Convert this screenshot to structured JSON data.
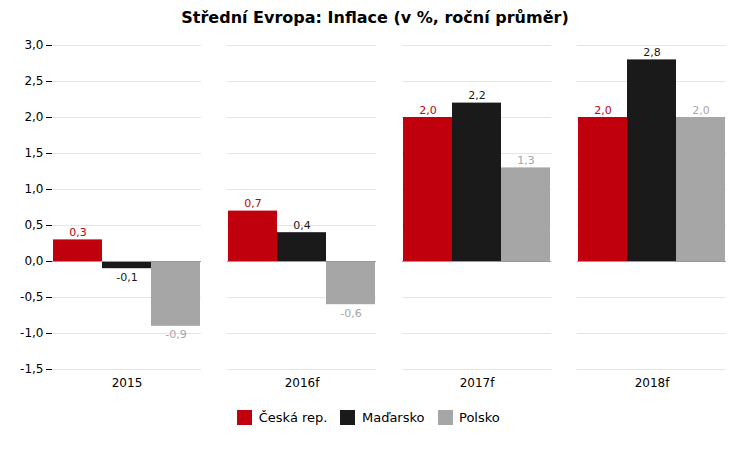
{
  "chart_data": {
    "type": "bar",
    "title": "Střední Evropa: Inflace (v %, roční průměr)",
    "categories": [
      "2015",
      "2016f",
      "2017f",
      "2018f"
    ],
    "series": [
      {
        "name": "Česká rep.",
        "color": "#c0000c",
        "values": [
          0.3,
          0.7,
          2.0,
          2.0
        ],
        "value_labels": [
          "0,3",
          "0,7",
          "2,0",
          "2,0"
        ]
      },
      {
        "name": "Maďarsko",
        "color": "#1a1a1a",
        "values": [
          -0.1,
          0.4,
          2.2,
          2.8
        ],
        "value_labels": [
          "-0,1",
          "0,4",
          "2,2",
          "2,8"
        ]
      },
      {
        "name": "Polsko",
        "color": "#a6a6a6",
        "values": [
          -0.9,
          -0.6,
          1.3,
          2.0
        ],
        "value_labels": [
          "-0,9",
          "-0,6",
          "1,3",
          "2,0"
        ]
      }
    ],
    "ylim": [
      -1.5,
      3.0
    ],
    "yticks": [
      {
        "value": -1.5,
        "label": "-1,5"
      },
      {
        "value": -1.0,
        "label": "-1,0"
      },
      {
        "value": -0.5,
        "label": "-0,5"
      },
      {
        "value": 0.0,
        "label": "0,0"
      },
      {
        "value": 0.5,
        "label": "0,5"
      },
      {
        "value": 1.0,
        "label": "1,0"
      },
      {
        "value": 1.5,
        "label": "1,5"
      },
      {
        "value": 2.0,
        "label": "2,0"
      },
      {
        "value": 2.5,
        "label": "2,5"
      },
      {
        "value": 3.0,
        "label": "3,0"
      }
    ],
    "grid": true,
    "data_labels": true,
    "legend": "bottom"
  }
}
